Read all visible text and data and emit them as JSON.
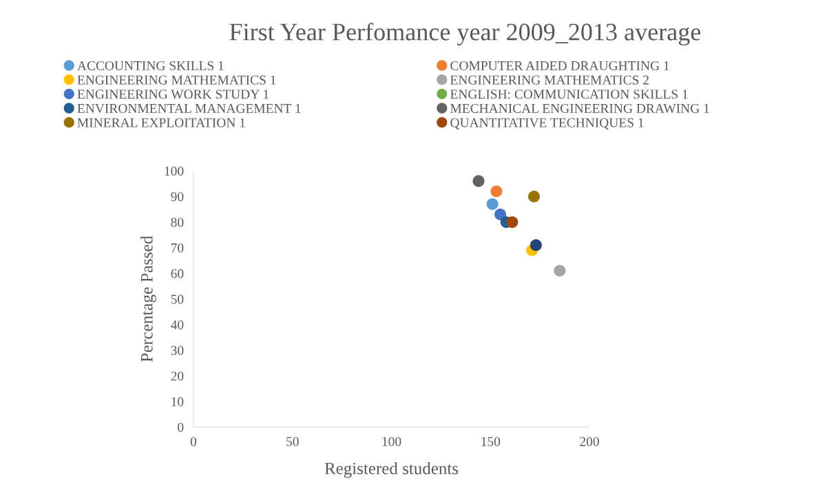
{
  "chart_data": {
    "type": "scatter",
    "title": "First Year Perfomance year 2009_2013 average",
    "xlabel": "Registered students",
    "ylabel": "Percentage Passed",
    "series": [
      {
        "name": "ACCOUNTING SKILLS 1",
        "color": "#5b9bd5",
        "x": [
          151
        ],
        "values": [
          87
        ]
      },
      {
        "name": "COMPUTER AIDED DRAUGHTING 1",
        "color": "#ed7d31",
        "x": [
          153
        ],
        "values": [
          92
        ]
      },
      {
        "name": "ENGINEERING MATHEMATICS 1",
        "color": "#ffc000",
        "x": [
          171
        ],
        "values": [
          69
        ]
      },
      {
        "name": "ENGINEERING MATHEMATICS 2",
        "color": "#a5a5a5",
        "x": [
          185
        ],
        "values": [
          61
        ]
      },
      {
        "name": "ENGINEERING WORK STUDY 1",
        "color": "#4472c4",
        "x": [
          155
        ],
        "values": [
          83
        ]
      },
      {
        "name": "ENGLISH: COMMUNICATION SKILLS 1",
        "color": "#70ad47",
        "x": [
          null
        ],
        "values": [
          null
        ]
      },
      {
        "name": "ENVIRONMENTAL MANAGEMENT 1",
        "color": "#255e91",
        "x": [
          158
        ],
        "values": [
          80
        ]
      },
      {
        "name": "MECHANICAL ENGINEERING DRAWING 1",
        "color": "#636363",
        "x": [
          144
        ],
        "values": [
          96
        ]
      },
      {
        "name": "MINERAL EXPLOITATION 1",
        "color": "#997300",
        "x": [
          172
        ],
        "values": [
          90
        ]
      },
      {
        "name": "QUANTITATIVE TECHNIQUES 1",
        "color": "#9e480e",
        "x": [
          161
        ],
        "values": [
          80
        ]
      },
      {
        "color": "#264478",
        "x": [
          173
        ],
        "values": [
          71
        ]
      }
    ],
    "xlim": [
      0,
      200
    ],
    "xticks": [
      0,
      50,
      100,
      150,
      200
    ],
    "ylim": [
      0,
      100
    ],
    "yticks": [
      0,
      10,
      20,
      30,
      40,
      50,
      60,
      70,
      80,
      90,
      100
    ],
    "marker": "circle",
    "grid": false,
    "legend": "top"
  }
}
